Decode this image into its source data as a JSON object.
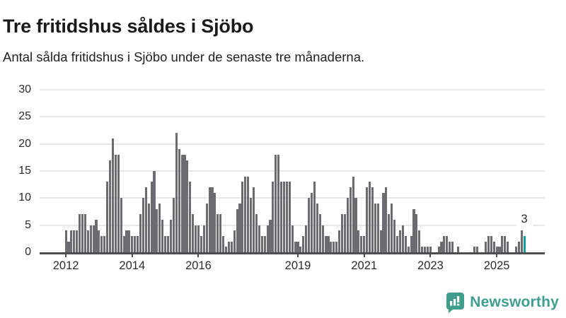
{
  "header": {
    "title": "Tre fritidshus såldes i Sjöbo",
    "subtitle": "Antal sålda fritidshus i Sjöbo under de senaste tre månaderna."
  },
  "chart_data": {
    "type": "bar",
    "title": "Tre fritidshus såldes i Sjöbo",
    "subtitle": "Antal sålda fritidshus i Sjöbo under de senaste tre månaderna.",
    "frequency": "monthly",
    "start_month": "2011-04",
    "end_month": "2025-11",
    "values": [
      0,
      0,
      0,
      0,
      0,
      0,
      0,
      0,
      0,
      4,
      2,
      4,
      4,
      4,
      7,
      7,
      7,
      4,
      5,
      5,
      6,
      4,
      3,
      3,
      13,
      17,
      21,
      18,
      18,
      10,
      3,
      4,
      4,
      3,
      3,
      3,
      7,
      10,
      12,
      9,
      13,
      15,
      8,
      9,
      6,
      3,
      3,
      6,
      10,
      22,
      19,
      18,
      18,
      17,
      13,
      7,
      5,
      5,
      3,
      5,
      9,
      12,
      12,
      11,
      7,
      7,
      3,
      1,
      2,
      2,
      4,
      8,
      9,
      13,
      14,
      14,
      10,
      12,
      7,
      5,
      3,
      3,
      5,
      6,
      13,
      18,
      18,
      13,
      13,
      13,
      13,
      5,
      2,
      2,
      1,
      3,
      5,
      10,
      11,
      13,
      9,
      7,
      5,
      3,
      3,
      2,
      2,
      2,
      4,
      7,
      7,
      10,
      12,
      14,
      10,
      4,
      3,
      3,
      12,
      13,
      12,
      9,
      9,
      4,
      11,
      12,
      7,
      9,
      6,
      3,
      4,
      5,
      3,
      1,
      3,
      8,
      7,
      4,
      1,
      1,
      1,
      1,
      0,
      0,
      1,
      2,
      3,
      3,
      2,
      2,
      0,
      1,
      0,
      0,
      0,
      0,
      0,
      1,
      1,
      0,
      0,
      2,
      3,
      3,
      2,
      1,
      1,
      3,
      3,
      2,
      0,
      0,
      1,
      2,
      4,
      3
    ],
    "ylim": [
      0,
      30
    ],
    "y_ticks": [
      0,
      5,
      10,
      15,
      20,
      25,
      30
    ],
    "x_ticks": [
      {
        "label": "2012",
        "index": 9
      },
      {
        "label": "2014",
        "index": 33
      },
      {
        "label": "2016",
        "index": 57
      },
      {
        "label": "2019",
        "index": 93
      },
      {
        "label": "2021",
        "index": 117
      },
      {
        "label": "2023",
        "index": 141
      },
      {
        "label": "2025",
        "index": 165
      }
    ],
    "grid": true,
    "legend": "none",
    "bar_color": "#6b6b70",
    "highlight_color": "#0ea1a1",
    "highlight_index": 175,
    "highlight_label": "3"
  },
  "footer": {
    "brand": "Newsworthy",
    "brand_color": "#3f9e8e"
  }
}
